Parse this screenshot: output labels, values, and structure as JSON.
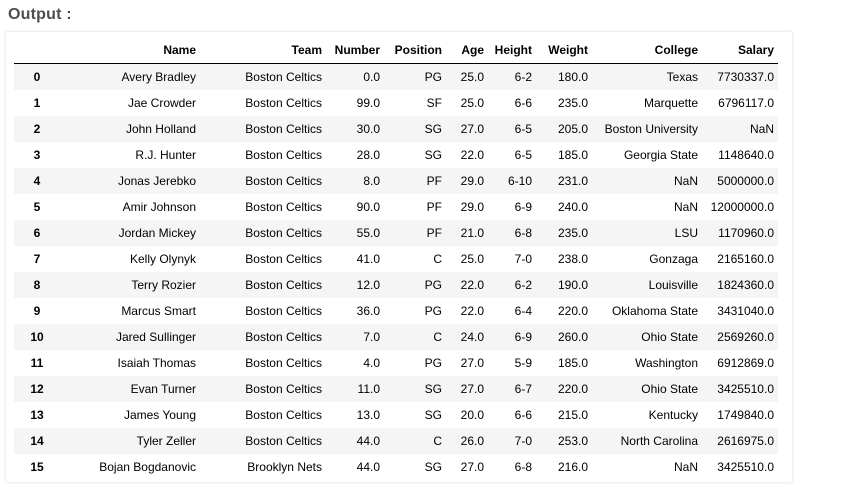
{
  "output_label": "Output :",
  "table": {
    "columns": [
      "",
      "Name",
      "Team",
      "Number",
      "Position",
      "Age",
      "Height",
      "Weight",
      "College",
      "Salary"
    ],
    "rows": [
      {
        "index": "0",
        "name": "Avery Bradley",
        "team": "Boston Celtics",
        "number": "0.0",
        "position": "PG",
        "age": "25.0",
        "height": "6-2",
        "weight": "180.0",
        "college": "Texas",
        "salary": "7730337.0"
      },
      {
        "index": "1",
        "name": "Jae Crowder",
        "team": "Boston Celtics",
        "number": "99.0",
        "position": "SF",
        "age": "25.0",
        "height": "6-6",
        "weight": "235.0",
        "college": "Marquette",
        "salary": "6796117.0"
      },
      {
        "index": "2",
        "name": "John Holland",
        "team": "Boston Celtics",
        "number": "30.0",
        "position": "SG",
        "age": "27.0",
        "height": "6-5",
        "weight": "205.0",
        "college": "Boston University",
        "salary": "NaN"
      },
      {
        "index": "3",
        "name": "R.J. Hunter",
        "team": "Boston Celtics",
        "number": "28.0",
        "position": "SG",
        "age": "22.0",
        "height": "6-5",
        "weight": "185.0",
        "college": "Georgia State",
        "salary": "1148640.0"
      },
      {
        "index": "4",
        "name": "Jonas Jerebko",
        "team": "Boston Celtics",
        "number": "8.0",
        "position": "PF",
        "age": "29.0",
        "height": "6-10",
        "weight": "231.0",
        "college": "NaN",
        "salary": "5000000.0"
      },
      {
        "index": "5",
        "name": "Amir Johnson",
        "team": "Boston Celtics",
        "number": "90.0",
        "position": "PF",
        "age": "29.0",
        "height": "6-9",
        "weight": "240.0",
        "college": "NaN",
        "salary": "12000000.0"
      },
      {
        "index": "6",
        "name": "Jordan Mickey",
        "team": "Boston Celtics",
        "number": "55.0",
        "position": "PF",
        "age": "21.0",
        "height": "6-8",
        "weight": "235.0",
        "college": "LSU",
        "salary": "1170960.0"
      },
      {
        "index": "7",
        "name": "Kelly Olynyk",
        "team": "Boston Celtics",
        "number": "41.0",
        "position": "C",
        "age": "25.0",
        "height": "7-0",
        "weight": "238.0",
        "college": "Gonzaga",
        "salary": "2165160.0"
      },
      {
        "index": "8",
        "name": "Terry Rozier",
        "team": "Boston Celtics",
        "number": "12.0",
        "position": "PG",
        "age": "22.0",
        "height": "6-2",
        "weight": "190.0",
        "college": "Louisville",
        "salary": "1824360.0"
      },
      {
        "index": "9",
        "name": "Marcus Smart",
        "team": "Boston Celtics",
        "number": "36.0",
        "position": "PG",
        "age": "22.0",
        "height": "6-4",
        "weight": "220.0",
        "college": "Oklahoma State",
        "salary": "3431040.0"
      },
      {
        "index": "10",
        "name": "Jared Sullinger",
        "team": "Boston Celtics",
        "number": "7.0",
        "position": "C",
        "age": "24.0",
        "height": "6-9",
        "weight": "260.0",
        "college": "Ohio State",
        "salary": "2569260.0"
      },
      {
        "index": "11",
        "name": "Isaiah Thomas",
        "team": "Boston Celtics",
        "number": "4.0",
        "position": "PG",
        "age": "27.0",
        "height": "5-9",
        "weight": "185.0",
        "college": "Washington",
        "salary": "6912869.0"
      },
      {
        "index": "12",
        "name": "Evan Turner",
        "team": "Boston Celtics",
        "number": "11.0",
        "position": "SG",
        "age": "27.0",
        "height": "6-7",
        "weight": "220.0",
        "college": "Ohio State",
        "salary": "3425510.0"
      },
      {
        "index": "13",
        "name": "James Young",
        "team": "Boston Celtics",
        "number": "13.0",
        "position": "SG",
        "age": "20.0",
        "height": "6-6",
        "weight": "215.0",
        "college": "Kentucky",
        "salary": "1749840.0"
      },
      {
        "index": "14",
        "name": "Tyler Zeller",
        "team": "Boston Celtics",
        "number": "44.0",
        "position": "C",
        "age": "26.0",
        "height": "7-0",
        "weight": "253.0",
        "college": "North Carolina",
        "salary": "2616975.0"
      },
      {
        "index": "15",
        "name": "Bojan Bogdanovic",
        "team": "Brooklyn Nets",
        "number": "44.0",
        "position": "SG",
        "age": "27.0",
        "height": "6-8",
        "weight": "216.0",
        "college": "NaN",
        "salary": "3425510.0"
      }
    ]
  }
}
